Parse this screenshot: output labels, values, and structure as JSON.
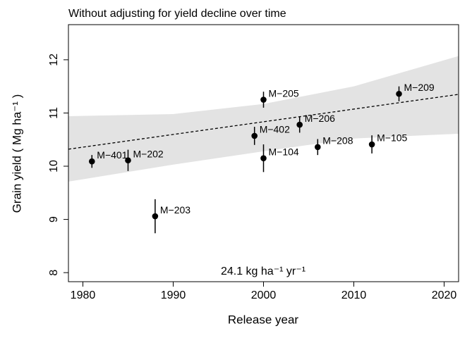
{
  "chart_data": {
    "type": "scatter",
    "title": "Without adjusting for yield decline over time",
    "xlabel": "Release year",
    "ylabel": "Grain yield ( Mg ha⁻¹ )",
    "annotation": "24.1 kg ha⁻¹ yr⁻¹",
    "xlim": [
      1978.4,
      2021.6
    ],
    "ylim": [
      7.83,
      12.66
    ],
    "xticks": [
      1980,
      1990,
      2000,
      2010,
      2020
    ],
    "yticks": [
      8,
      9,
      10,
      11,
      12
    ],
    "color": "#000000",
    "labels": [
      "M−401",
      "M−202",
      "M−203",
      "M−402",
      "M−104",
      "M−205",
      "M−206",
      "M−208",
      "M−105",
      "M−209"
    ],
    "x": [
      1981,
      1985,
      1988,
      1999,
      2000,
      2000,
      2004,
      2006,
      2012,
      2015
    ],
    "values": [
      10.09,
      10.11,
      9.06,
      10.57,
      10.15,
      11.25,
      10.78,
      10.36,
      10.41,
      11.36
    ],
    "errors": [
      0.12,
      0.2,
      0.32,
      0.17,
      0.26,
      0.15,
      0.15,
      0.15,
      0.17,
      0.14
    ],
    "trend": {
      "x": [
        1978.4,
        2021.6
      ],
      "values": [
        10.32,
        11.35
      ]
    },
    "band": {
      "color": "#e3e3e3",
      "x": [
        1978.4,
        1990,
        2000,
        2010,
        2021.6
      ],
      "upper": [
        10.94,
        10.98,
        11.17,
        11.5,
        12.07
      ],
      "lower": [
        9.71,
        10.03,
        10.28,
        10.52,
        10.61
      ]
    }
  }
}
